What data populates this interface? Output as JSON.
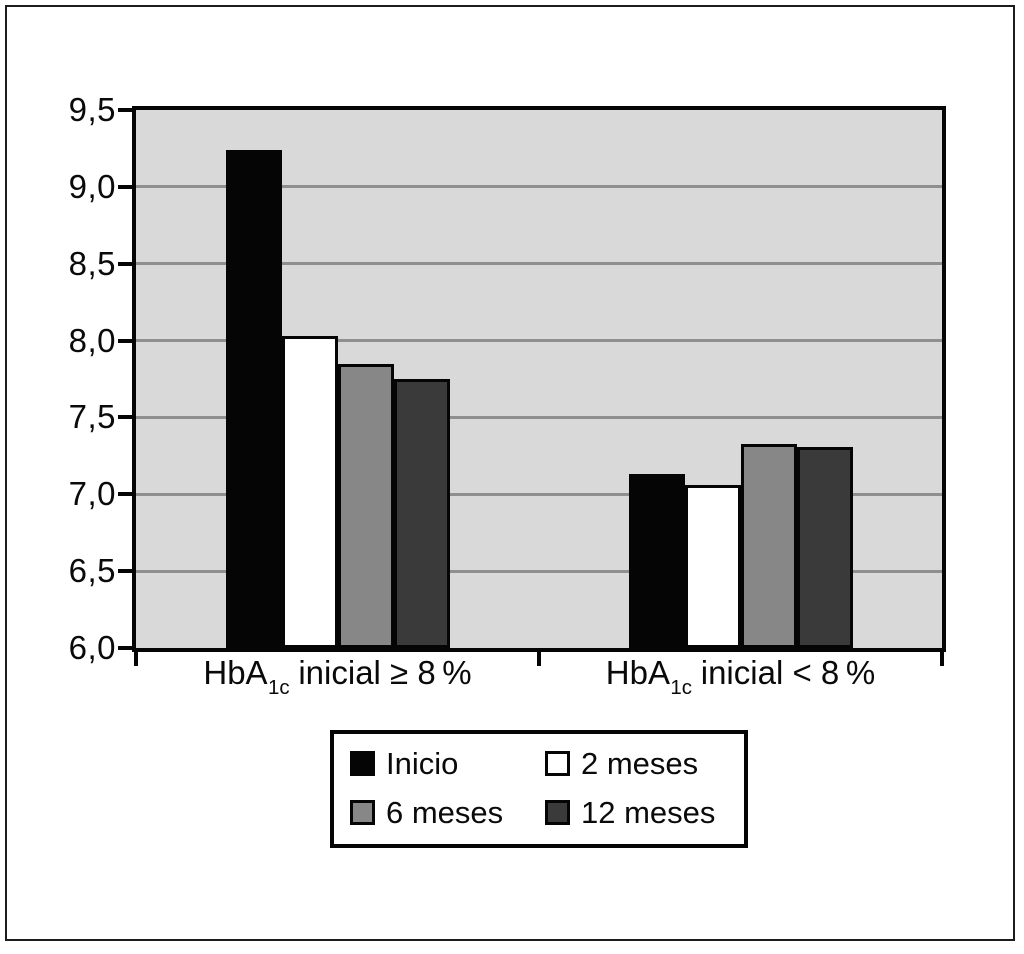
{
  "chart_data": {
    "type": "bar",
    "title": "",
    "xlabel": "",
    "ylabel": "",
    "categories": [
      {
        "base": "HbA",
        "sub": "1c",
        "rest": " inicial ≥ 8 %"
      },
      {
        "base": "HbA",
        "sub": "1c",
        "rest": " inicial < 8 %"
      }
    ],
    "series": [
      {
        "name": "Inicio",
        "color": "#050505",
        "values": [
          9.24,
          7.13
        ]
      },
      {
        "name": "2 meses",
        "color": "#ffffff",
        "values": [
          8.03,
          7.06
        ]
      },
      {
        "name": "6 meses",
        "color": "#878787",
        "values": [
          7.85,
          7.33
        ]
      },
      {
        "name": "12 meses",
        "color": "#3a3a3a",
        "values": [
          7.75,
          7.31
        ]
      }
    ],
    "ylim": [
      6.0,
      9.5
    ],
    "ytick_step": 0.5,
    "ytick_labels": [
      "6,0",
      "6,5",
      "7,0",
      "7,5",
      "8,0",
      "8,5",
      "9,0",
      "9,5"
    ],
    "grid": true,
    "legend_position": "bottom-box",
    "legend_order": [
      "Inicio",
      "2 meses",
      "6 meses",
      "12 meses"
    ],
    "colors": {
      "plot_background": "#d9d9d9",
      "gridline": "#8f8f8f",
      "axis": "#050505",
      "page_background": "#ffffff"
    }
  }
}
